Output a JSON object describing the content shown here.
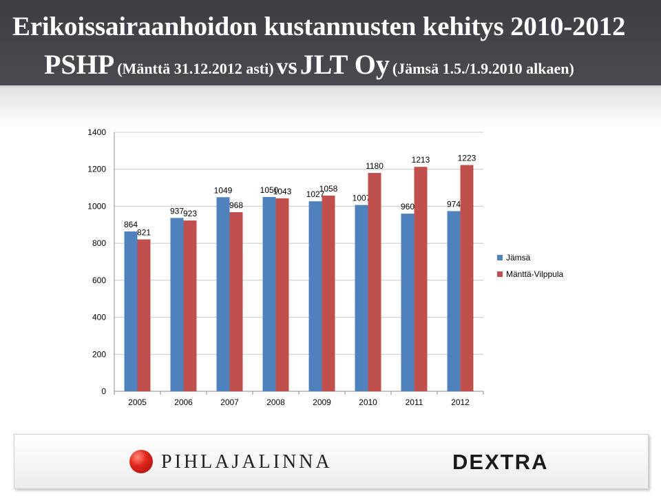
{
  "header": {
    "line1": "Erikoissairaanhoidon kustannusten kehitys 2010-2012",
    "line2_a": "PSHP",
    "line2_b": "(Mänttä 31.12.2012 asti)",
    "line2_c": "vs",
    "line2_d": "JLT Oy",
    "line2_e": "(Jämsä 1.5./1.9.2010 alkaen)"
  },
  "chart_data": {
    "type": "bar",
    "categories": [
      "2005",
      "2006",
      "2007",
      "2008",
      "2009",
      "2010",
      "2011",
      "2012"
    ],
    "series": [
      {
        "name": "Jämsä",
        "values": [
          864,
          937,
          1049,
          1050,
          1027,
          1007,
          960,
          974
        ],
        "color": "#4f81bd"
      },
      {
        "name": "Mänttä-Vilppula",
        "values": [
          821,
          923,
          968,
          1043,
          1058,
          1180,
          1213,
          1223
        ],
        "color": "#c0504d"
      }
    ],
    "ylim": [
      0,
      1400
    ],
    "yticks": [
      0,
      200,
      400,
      600,
      800,
      1000,
      1200,
      1400
    ],
    "grid": true,
    "legend_position": "right",
    "data_labels": true
  },
  "footer": {
    "logo_left": "PIHLAJALINNA",
    "logo_right": "DEXTRA"
  }
}
